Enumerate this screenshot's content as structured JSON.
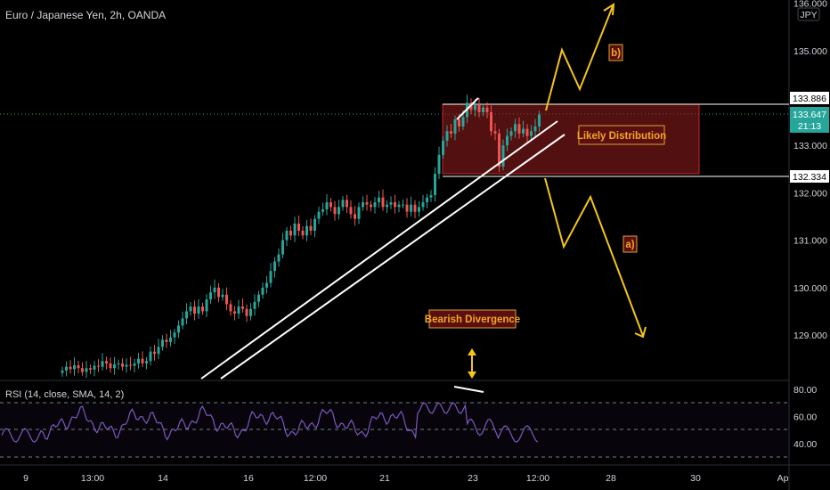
{
  "header": {
    "symbol_title": "Euro / Japanese Yen, 2h, OANDA"
  },
  "rsi": {
    "title": "RSI (14, close, SMA, 14, 2)"
  },
  "price_axis": {
    "currency": "JPY",
    "last_price": "133.647",
    "countdown": "21:13",
    "level_top": "133.886",
    "level_bottom": "132.334"
  },
  "annotations": {
    "box_label": "Likely Distribution",
    "scenario_b": "b)",
    "scenario_a": "a)",
    "divergence": "Bearish Divergence"
  },
  "colors": {
    "background": "#000000",
    "up": "#26a69a",
    "down": "#ef5350",
    "box": "#8b1a1a",
    "annotation": "#f5a623",
    "arrow": "#f5c518",
    "rsi_line": "#7e57c2",
    "last_price": "#26a69a"
  },
  "chart_data": [
    {
      "type": "candlestick",
      "title": "Euro / Japanese Yen, 2h, OANDA",
      "y_ticks": [
        129,
        130,
        131,
        132,
        133,
        134,
        135,
        136
      ],
      "ylim": [
        128.1,
        136.1
      ],
      "x_ticks": [
        "9",
        "13:00",
        "14",
        "16",
        "12:00",
        "21",
        "23",
        "12:00",
        "28",
        "30",
        "Ap"
      ],
      "candles_close": [
        128.25,
        128.33,
        128.28,
        128.36,
        128.3,
        128.22,
        128.3,
        128.27,
        128.35,
        128.33,
        128.45,
        128.4,
        128.3,
        128.38,
        128.4,
        128.33,
        128.37,
        128.35,
        128.4,
        128.5,
        128.4,
        128.45,
        128.65,
        128.6,
        128.75,
        128.9,
        128.85,
        128.95,
        129.05,
        129.2,
        129.35,
        129.5,
        129.6,
        129.45,
        129.6,
        129.5,
        129.75,
        129.9,
        130.0,
        129.8,
        129.85,
        129.65,
        129.5,
        129.45,
        129.6,
        129.55,
        129.4,
        129.55,
        129.7,
        129.85,
        130.0,
        130.1,
        130.35,
        130.55,
        130.7,
        131.0,
        131.2,
        131.1,
        131.35,
        131.2,
        131.1,
        131.3,
        131.2,
        131.45,
        131.6,
        131.65,
        131.8,
        131.7,
        131.55,
        131.7,
        131.85,
        131.7,
        131.55,
        131.45,
        131.7,
        131.8,
        131.75,
        131.7,
        131.8,
        131.9,
        131.7,
        131.75,
        131.8,
        131.7,
        131.75,
        131.75,
        131.6,
        131.75,
        131.6,
        131.7,
        131.8,
        131.9,
        131.95,
        132.4,
        132.8,
        133.1,
        133.3,
        133.25,
        133.55,
        133.4,
        133.6,
        133.9,
        133.75,
        133.85,
        133.7,
        133.8,
        133.7,
        133.3,
        133.25,
        132.55,
        133.0,
        133.2,
        133.3,
        133.45,
        133.25,
        133.35,
        133.2,
        133.3,
        133.4,
        133.65
      ],
      "levels": [
        133.886,
        132.334
      ],
      "distribution_zone": [
        132.334,
        133.886
      ],
      "last_price": 133.647,
      "scenario_b_path": [
        [
          133.7
        ],
        [
          134.98
        ],
        [
          134.25
        ],
        [
          135.9
        ]
      ],
      "scenario_a_path": [
        [
          132.32
        ],
        [
          131.05
        ],
        [
          131.95
        ],
        [
          129.1
        ]
      ]
    },
    {
      "type": "line",
      "title": "RSI (14, close, SMA, 14, 2)",
      "y_ticks": [
        40,
        60,
        80
      ],
      "ylim": [
        28,
        84
      ],
      "bands": [
        70,
        50,
        30
      ]
    }
  ]
}
